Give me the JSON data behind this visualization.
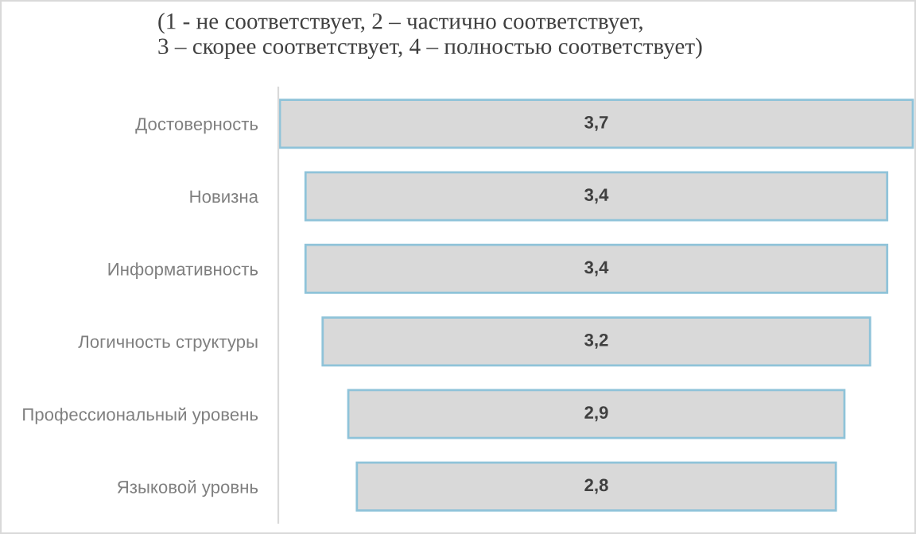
{
  "chart_data": {
    "type": "other",
    "title": "(1 - не соответствует, 2 – частично соответствует,\n3 – скорее соответствует, 4 – полностью соответствует)",
    "categories": [
      "Достоверность",
      "Новизна",
      "Информативность",
      "Логичность структуры",
      "Профессиональный уровень",
      "Языковой уровнь"
    ],
    "values": [
      3.7,
      3.4,
      3.4,
      3.2,
      2.9,
      2.8
    ],
    "value_labels": [
      "3,7",
      "3,4",
      "3,4",
      "3,2",
      "2,9",
      "2,8"
    ],
    "color": "#d9d9d9"
  }
}
